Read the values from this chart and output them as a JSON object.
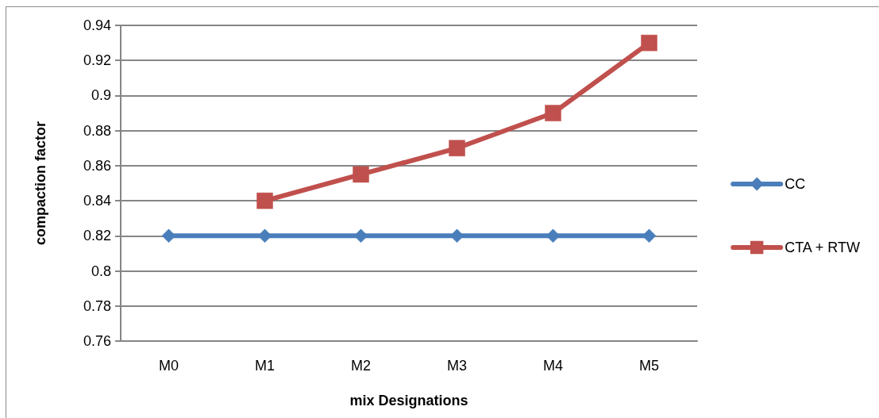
{
  "chart_data": {
    "type": "line",
    "xlabel": "mix Designations",
    "ylabel": "compaction factor",
    "categories": [
      "M0",
      "M1",
      "M2",
      "M3",
      "M4",
      "M5"
    ],
    "series": [
      {
        "name": "CC",
        "color": "#4a7ebb",
        "marker": "diamond",
        "values": [
          0.82,
          0.82,
          0.82,
          0.82,
          0.82,
          0.82
        ]
      },
      {
        "name": "CTA + RTW",
        "color": "#c0504d",
        "marker": "square",
        "values": [
          null,
          0.84,
          0.855,
          0.87,
          0.89,
          0.93
        ]
      }
    ],
    "ylim": [
      0.76,
      0.94
    ],
    "yticks": [
      0.76,
      0.78,
      0.8,
      0.82,
      0.84,
      0.86,
      0.88,
      0.9,
      0.92,
      0.94
    ],
    "grid": "y",
    "legend": "right"
  }
}
